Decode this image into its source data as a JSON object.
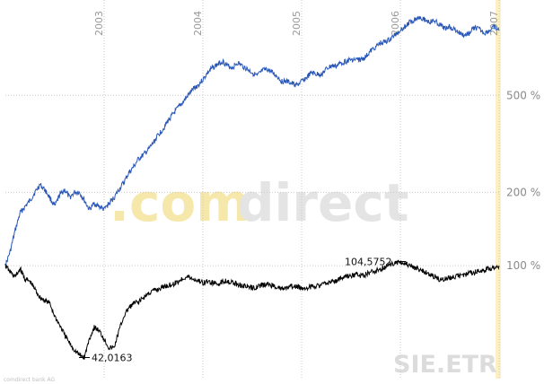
{
  "chart_data": {
    "type": "line",
    "x_ticks": [
      "2003",
      "2004",
      "2005",
      "2006",
      "2007"
    ],
    "y_scale": "log",
    "y_ticks": [
      "100 %",
      "200 %",
      "500 %"
    ],
    "grid": true,
    "annotations": {
      "min_label": "42,0163",
      "max_label": "104,5752"
    },
    "watermark": {
      "brand_part1": ".com",
      "brand_part2": "direct",
      "ticker": "SIE.ETR",
      "footer": "comdirect bank AG"
    },
    "series": [
      {
        "color": "#2957b8",
        "x": [
          2002.0,
          2002.05,
          2002.1,
          2002.15,
          2002.2,
          2002.25,
          2002.3,
          2002.35,
          2002.4,
          2002.45,
          2002.5,
          2002.55,
          2002.6,
          2002.65,
          2002.7,
          2002.75,
          2002.8,
          2002.85,
          2002.9,
          2002.95,
          2003.0,
          2003.05,
          2003.1,
          2003.15,
          2003.2,
          2003.25,
          2003.3,
          2003.35,
          2003.4,
          2003.45,
          2003.5,
          2003.55,
          2003.6,
          2003.65,
          2003.7,
          2003.75,
          2003.8,
          2003.85,
          2003.9,
          2003.95,
          2004.0,
          2004.05,
          2004.1,
          2004.15,
          2004.2,
          2004.25,
          2004.3,
          2004.35,
          2004.4,
          2004.45,
          2004.5,
          2004.55,
          2004.6,
          2004.65,
          2004.7,
          2004.75,
          2004.8,
          2004.85,
          2004.9,
          2004.95,
          2005.0,
          2005.05,
          2005.1,
          2005.15,
          2005.2,
          2005.25,
          2005.3,
          2005.35,
          2005.4,
          2005.45,
          2005.5,
          2005.55,
          2005.6,
          2005.65,
          2005.7,
          2005.75,
          2005.8,
          2005.85,
          2005.9,
          2005.95,
          2006.0,
          2006.05,
          2006.1,
          2006.15,
          2006.2,
          2006.25,
          2006.3,
          2006.35,
          2006.4,
          2006.45,
          2006.5,
          2006.55,
          2006.6,
          2006.65,
          2006.7,
          2006.75,
          2006.8,
          2006.85,
          2006.9,
          2006.95,
          2007.0
        ],
        "y": [
          100,
          115,
          140,
          165,
          175,
          185,
          200,
          215,
          205,
          190,
          175,
          195,
          205,
          190,
          200,
          200,
          185,
          170,
          180,
          175,
          170,
          180,
          190,
          205,
          220,
          240,
          255,
          275,
          285,
          300,
          320,
          345,
          365,
          395,
          420,
          445,
          470,
          500,
          530,
          550,
          580,
          620,
          650,
          670,
          690,
          660,
          650,
          680,
          660,
          640,
          620,
          600,
          630,
          640,
          620,
          600,
          570,
          570,
          560,
          550,
          570,
          590,
          620,
          610,
          610,
          640,
          660,
          660,
          680,
          690,
          700,
          700,
          700,
          720,
          760,
          790,
          820,
          830,
          850,
          890,
          930,
          960,
          1000,
          1030,
          1050,
          1020,
          1000,
          1010,
          970,
          940,
          960,
          930,
          900,
          880,
          900,
          950,
          930,
          900,
          920,
          950,
          920
        ],
        "values_note": ""
      },
      {
        "color": "#000000",
        "x": [
          2002.0,
          2002.05,
          2002.1,
          2002.15,
          2002.2,
          2002.25,
          2002.3,
          2002.35,
          2002.4,
          2002.45,
          2002.5,
          2002.55,
          2002.6,
          2002.65,
          2002.7,
          2002.75,
          2002.8,
          2002.85,
          2002.9,
          2002.95,
          2003.0,
          2003.05,
          2003.1,
          2003.15,
          2003.2,
          2003.25,
          2003.3,
          2003.35,
          2003.4,
          2003.45,
          2003.5,
          2003.55,
          2003.6,
          2003.65,
          2003.7,
          2003.75,
          2003.8,
          2003.85,
          2003.9,
          2003.95,
          2004.0,
          2004.05,
          2004.1,
          2004.15,
          2004.2,
          2004.25,
          2004.3,
          2004.35,
          2004.4,
          2004.45,
          2004.5,
          2004.55,
          2004.6,
          2004.65,
          2004.7,
          2004.75,
          2004.8,
          2004.85,
          2004.9,
          2004.95,
          2005.0,
          2005.05,
          2005.1,
          2005.15,
          2005.2,
          2005.25,
          2005.3,
          2005.35,
          2005.4,
          2005.45,
          2005.5,
          2005.55,
          2005.6,
          2005.65,
          2005.7,
          2005.75,
          2005.8,
          2005.85,
          2005.9,
          2005.95,
          2006.0,
          2006.05,
          2006.1,
          2006.15,
          2006.2,
          2006.25,
          2006.3,
          2006.35,
          2006.4,
          2006.45,
          2006.5,
          2006.55,
          2006.6,
          2006.65,
          2006.7,
          2006.75,
          2006.8,
          2006.85,
          2006.9,
          2006.95,
          2007.0
        ],
        "y": [
          100,
          94,
          90,
          97,
          88,
          86,
          80,
          74,
          72,
          70,
          62,
          57,
          52,
          48,
          45,
          43,
          42,
          50,
          56,
          54,
          50,
          46,
          46,
          54,
          62,
          67,
          70,
          71,
          74,
          77,
          79,
          80,
          82,
          83,
          84,
          86,
          89,
          90,
          88,
          87,
          85,
          86,
          85,
          84,
          86,
          87,
          85,
          84,
          83,
          82,
          81,
          82,
          83,
          84,
          83,
          82,
          80,
          81,
          82,
          82,
          81,
          81,
          82,
          83,
          83,
          85,
          86,
          87,
          89,
          90,
          91,
          92,
          91,
          92,
          94,
          95,
          97,
          99,
          101,
          103,
          104,
          102,
          100,
          98,
          96,
          94,
          92,
          90,
          88,
          88,
          89,
          90,
          91,
          92,
          93,
          94,
          95,
          96,
          97,
          99,
          100
        ],
        "values_note": ""
      }
    ],
    "xlim": [
      2002.0,
      2007.0
    ],
    "ylim": [
      35,
      1150
    ]
  }
}
